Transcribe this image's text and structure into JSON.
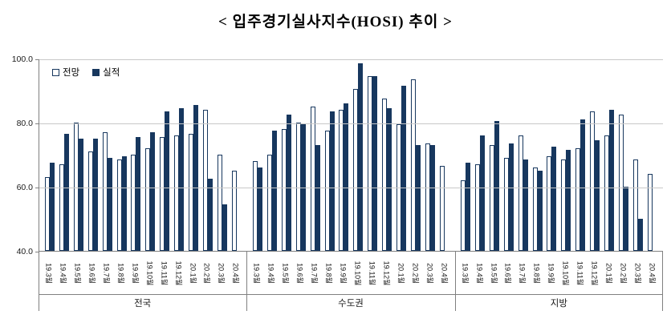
{
  "chart_data": {
    "type": "bar",
    "title": "< 입주경기실사지수(HOSI) 추이 >",
    "ylim": [
      40,
      100
    ],
    "yticks": [
      {
        "value": 100,
        "label": "100.0"
      },
      {
        "value": 80,
        "label": "80.0"
      },
      {
        "value": 60,
        "label": "60.0"
      },
      {
        "value": 40,
        "label": "40.0"
      }
    ],
    "legend": {
      "forecast": "전망",
      "actual": "실적"
    },
    "colors": {
      "forecast_fill": "#FFFFFF",
      "forecast_border": "#17375E",
      "actual_fill": "#17375E",
      "gridline": "#C8C8C8",
      "axis": "#808080"
    },
    "categories": [
      "19.3월",
      "19.4월",
      "19.5월",
      "19.6월",
      "19.7월",
      "19.8월",
      "19.9월",
      "19.10월",
      "19.11월",
      "19.12월",
      "20.1월",
      "20.2월",
      "20.3월",
      "20.4월"
    ],
    "groups": [
      {
        "label": "전국",
        "forecast": [
          63,
          67,
          80,
          71,
          77,
          68.5,
          70,
          72,
          75.5,
          76,
          76.5,
          84,
          70,
          65
        ],
        "actual": [
          67.5,
          76.5,
          75,
          75,
          69,
          69.5,
          75.5,
          77,
          83.5,
          84.5,
          85.5,
          62.5,
          54.5,
          null
        ]
      },
      {
        "label": "수도권",
        "forecast": [
          68,
          70,
          78,
          80,
          85,
          77.5,
          84,
          90.5,
          94.5,
          87.5,
          79.5,
          93.5,
          73.5,
          66.5
        ],
        "actual": [
          66,
          77.5,
          82.5,
          79.5,
          73,
          83.5,
          86,
          98.5,
          94.5,
          84.5,
          91.5,
          73,
          73,
          null
        ]
      },
      {
        "label": "지방",
        "forecast": [
          62,
          67,
          73,
          69,
          76,
          66,
          69.5,
          68.5,
          72,
          83.5,
          76,
          82.5,
          68.5,
          64
        ],
        "actual": [
          67.5,
          76,
          80.5,
          73.5,
          68.5,
          65,
          72.5,
          71.5,
          81,
          74.5,
          84,
          60,
          50,
          null
        ]
      }
    ]
  }
}
